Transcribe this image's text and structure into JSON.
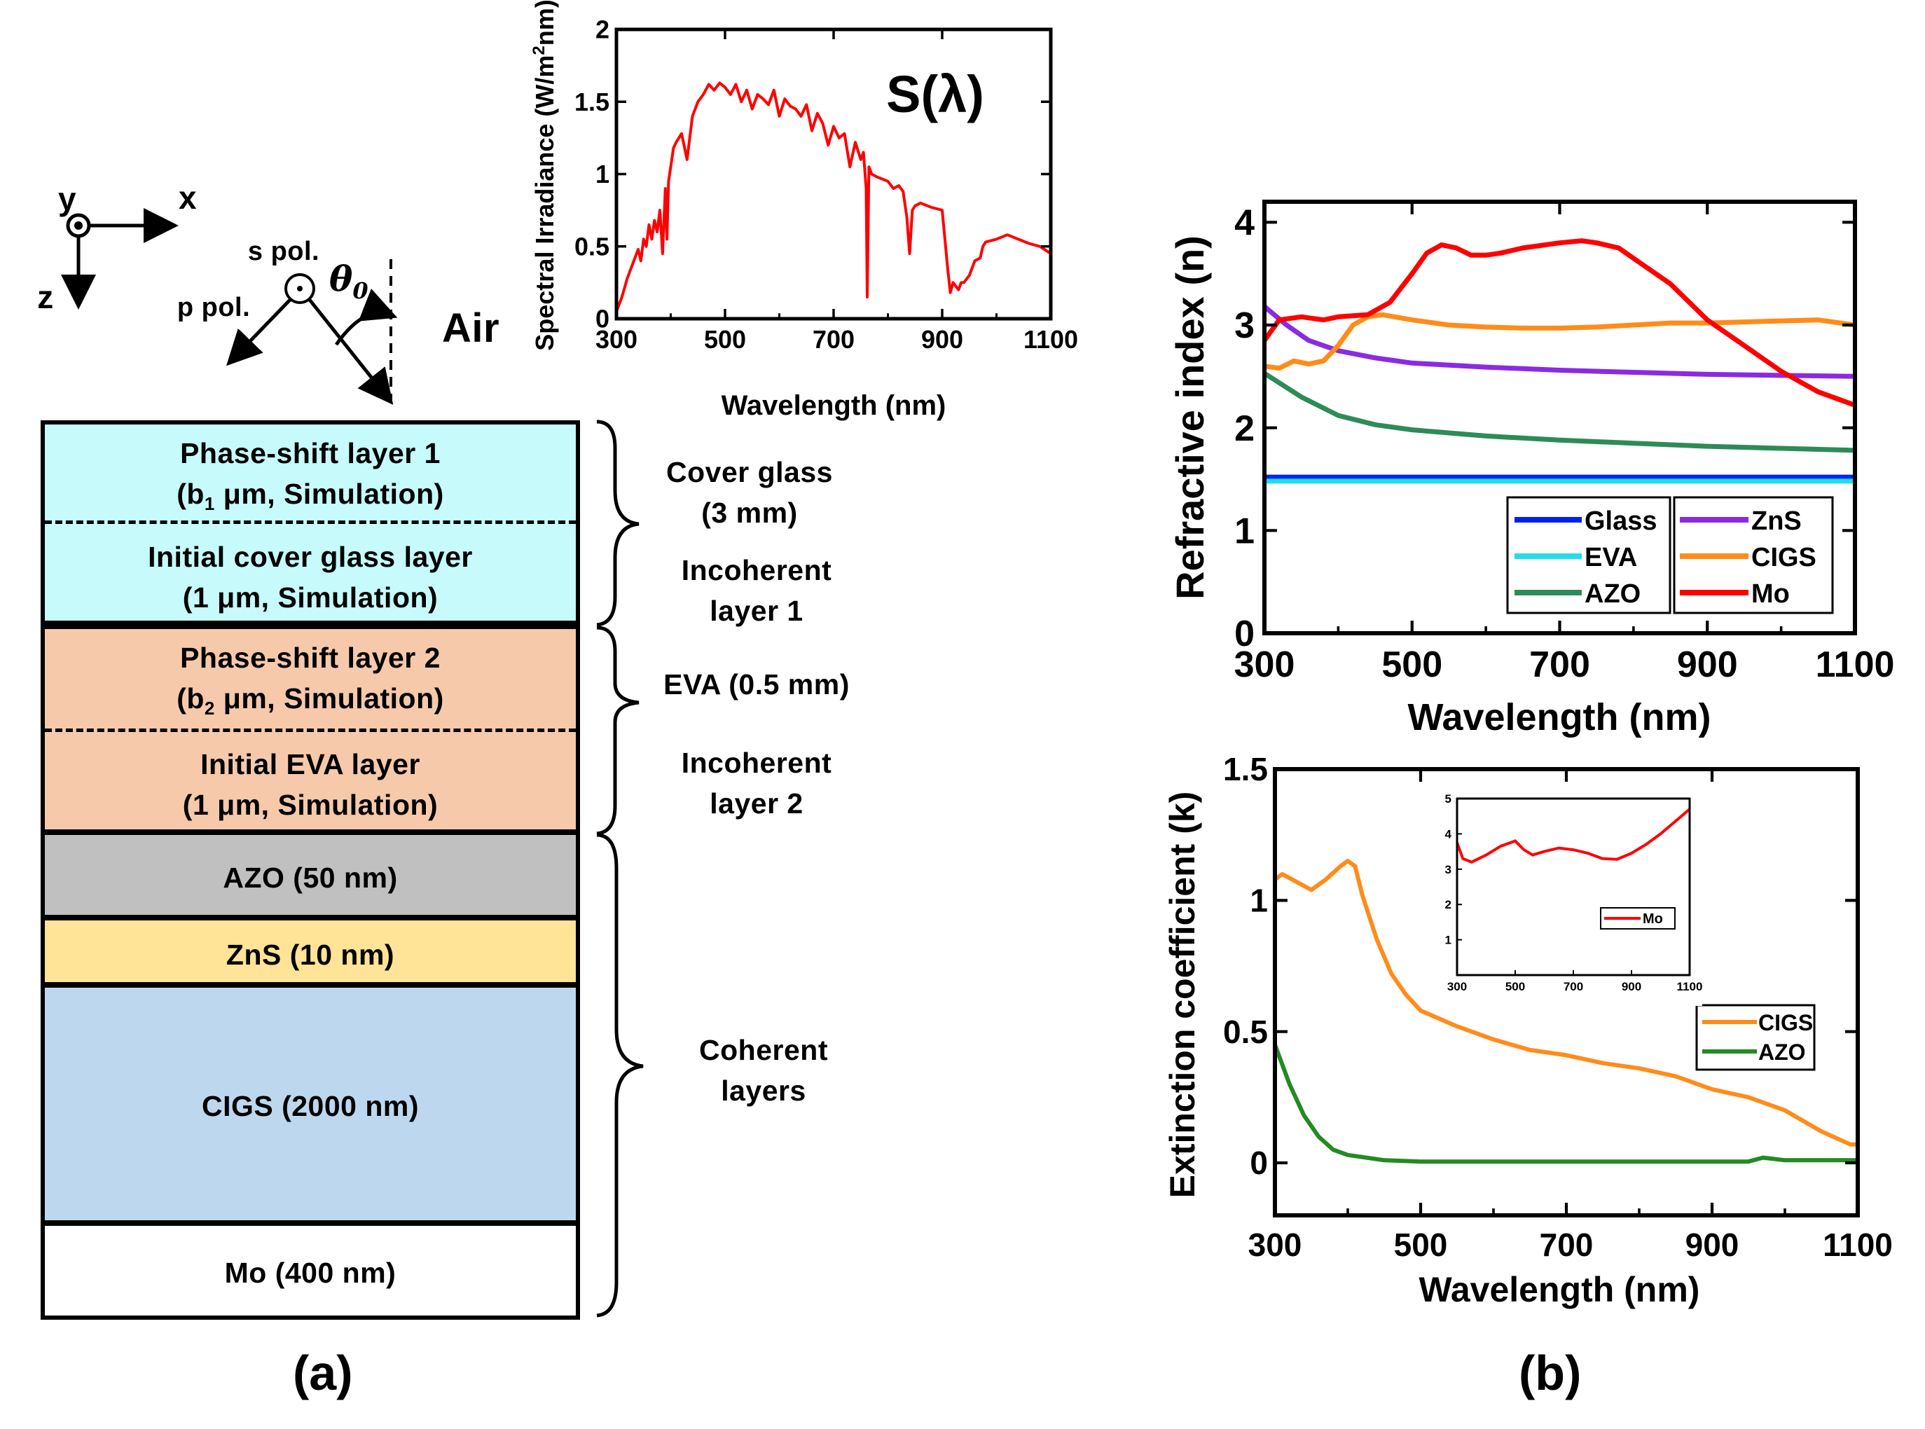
{
  "panel_a": {
    "label": "(a)",
    "axes": {
      "y": "y",
      "x": "x",
      "z": "z"
    },
    "polarization": {
      "s": "s pol.",
      "p": "p pol.",
      "angle": "θ",
      "angle_sub": "0"
    },
    "medium": "Air",
    "layers": [
      {
        "id": "ps1",
        "line1": "Phase-shift layer 1",
        "line2_pre": "(b",
        "line2_sub": "1",
        "line2_post": " μm, Simulation)",
        "color": "#C6FAFB"
      },
      {
        "id": "icg",
        "line1": "Initial cover glass layer",
        "line2": "(1 μm, Simulation)",
        "color": "#C6FAFB"
      },
      {
        "id": "ps2",
        "line1": "Phase-shift layer 2",
        "line2_pre": "(b",
        "line2_sub": "2",
        "line2_post": " μm, Simulation)",
        "color": "#F5C9AA"
      },
      {
        "id": "iev",
        "line1": "Initial EVA layer",
        "line2": "(1 μm, Simulation)",
        "color": "#F5C9AA"
      },
      {
        "id": "azo",
        "text": "AZO (50 nm)",
        "color": "#C0C0C0"
      },
      {
        "id": "zns",
        "text": "ZnS (10 nm)",
        "color": "#FFE396"
      },
      {
        "id": "cigs",
        "text": "CIGS (2000 nm)",
        "color": "#BDD7EE"
      },
      {
        "id": "mo",
        "text": "Mo (400 nm)",
        "color": "#FFFFFF"
      }
    ],
    "brace_labels": {
      "cover_glass": [
        "Cover glass",
        "(3 mm)"
      ],
      "incoherent1": [
        "Incoherent",
        "layer 1"
      ],
      "eva": "EVA (0.5 mm)",
      "incoherent2": [
        "Incoherent",
        "layer 2"
      ],
      "coherent": [
        "Coherent",
        "layers"
      ]
    }
  },
  "panel_b": {
    "label": "(b)"
  },
  "chart_data": [
    {
      "type": "line",
      "id": "spectrum",
      "annotation": "S(λ)",
      "xlabel": "Wavelength (nm)",
      "ylabel": "Spectral Irradiance (W/m²nm)",
      "ylabel_pre": "Spectral Irradiance (W/m",
      "ylabel_sup": "2",
      "ylabel_post": "nm)",
      "xlim": [
        300,
        1100
      ],
      "ylim": [
        0,
        2
      ],
      "xticks": [
        "300",
        "500",
        "700",
        "900",
        "1100"
      ],
      "yticks": [
        "0",
        "0.5",
        "1",
        "1.5",
        "2"
      ],
      "series": [
        {
          "name": "S(λ)",
          "color": "#FF0000",
          "x": [
            300,
            310,
            320,
            330,
            340,
            345,
            350,
            355,
            360,
            365,
            370,
            375,
            380,
            385,
            390,
            393,
            396,
            400,
            405,
            410,
            420,
            430,
            440,
            450,
            460,
            470,
            480,
            490,
            500,
            510,
            520,
            530,
            540,
            550,
            560,
            570,
            580,
            590,
            600,
            610,
            620,
            630,
            640,
            650,
            660,
            670,
            680,
            690,
            700,
            710,
            720,
            730,
            740,
            750,
            755,
            760,
            762,
            765,
            770,
            780,
            800,
            810,
            820,
            828,
            835,
            840,
            845,
            850,
            860,
            880,
            900,
            910,
            915,
            920,
            930,
            935,
            940,
            950,
            960,
            970,
            975,
            980,
            1000,
            1020,
            1040,
            1060,
            1080,
            1100
          ],
          "y": [
            0.05,
            0.15,
            0.28,
            0.38,
            0.48,
            0.4,
            0.55,
            0.5,
            0.65,
            0.55,
            0.68,
            0.6,
            0.75,
            0.45,
            0.9,
            0.55,
            0.95,
            1.05,
            1.18,
            1.22,
            1.28,
            1.1,
            1.4,
            1.5,
            1.55,
            1.62,
            1.58,
            1.63,
            1.6,
            1.55,
            1.62,
            1.5,
            1.58,
            1.45,
            1.55,
            1.52,
            1.48,
            1.58,
            1.4,
            1.52,
            1.47,
            1.45,
            1.4,
            1.48,
            1.3,
            1.42,
            1.35,
            1.2,
            1.33,
            1.25,
            1.28,
            1.05,
            1.22,
            1.1,
            1.15,
            0.9,
            0.15,
            1.05,
            1.0,
            0.98,
            0.95,
            0.9,
            0.92,
            0.88,
            0.7,
            0.45,
            0.75,
            0.78,
            0.8,
            0.77,
            0.75,
            0.35,
            0.18,
            0.25,
            0.2,
            0.25,
            0.25,
            0.3,
            0.4,
            0.42,
            0.5,
            0.53,
            0.55,
            0.58,
            0.55,
            0.52,
            0.5,
            0.45
          ]
        }
      ]
    },
    {
      "type": "line",
      "id": "refractive",
      "xlabel": "Wavelength (nm)",
      "ylabel": "Refractive index (n)",
      "xlim": [
        300,
        1100
      ],
      "ylim": [
        0,
        4.2
      ],
      "xticks": [
        "300",
        "500",
        "700",
        "900",
        "1100"
      ],
      "yticks": [
        "0",
        "1",
        "2",
        "3",
        "4"
      ],
      "series": [
        {
          "name": "Glass",
          "color": "#0022EE",
          "x": [
            300,
            1100
          ],
          "y": [
            1.52,
            1.52
          ]
        },
        {
          "name": "EVA",
          "color": "#22DDEE",
          "x": [
            300,
            1100
          ],
          "y": [
            1.48,
            1.48
          ]
        },
        {
          "name": "AZO",
          "color": "#2E8B57",
          "x": [
            300,
            350,
            400,
            450,
            500,
            600,
            700,
            800,
            900,
            1000,
            1100
          ],
          "y": [
            2.53,
            2.3,
            2.12,
            2.03,
            1.98,
            1.92,
            1.88,
            1.85,
            1.82,
            1.8,
            1.78
          ]
        },
        {
          "name": "ZnS",
          "color": "#8A2BE2",
          "x": [
            300,
            330,
            360,
            400,
            450,
            500,
            600,
            700,
            800,
            900,
            1000,
            1100
          ],
          "y": [
            3.18,
            3.0,
            2.85,
            2.75,
            2.68,
            2.63,
            2.59,
            2.56,
            2.54,
            2.52,
            2.51,
            2.5
          ]
        },
        {
          "name": "CIGS",
          "color": "#FF8C1A",
          "x": [
            300,
            320,
            340,
            360,
            380,
            400,
            420,
            440,
            460,
            500,
            550,
            600,
            650,
            700,
            750,
            800,
            850,
            900,
            950,
            1000,
            1050,
            1100
          ],
          "y": [
            2.6,
            2.58,
            2.65,
            2.62,
            2.65,
            2.8,
            3.0,
            3.08,
            3.1,
            3.05,
            3.0,
            2.98,
            2.97,
            2.97,
            2.98,
            3.0,
            3.02,
            3.02,
            3.03,
            3.04,
            3.05,
            3.0
          ]
        },
        {
          "name": "Mo",
          "color": "#FF0000",
          "x": [
            300,
            320,
            350,
            380,
            400,
            440,
            470,
            500,
            520,
            540,
            560,
            580,
            600,
            620,
            650,
            700,
            730,
            750,
            780,
            800,
            850,
            900,
            950,
            1000,
            1050,
            1100
          ],
          "y": [
            2.85,
            3.05,
            3.08,
            3.05,
            3.08,
            3.1,
            3.22,
            3.5,
            3.7,
            3.78,
            3.75,
            3.68,
            3.68,
            3.7,
            3.75,
            3.8,
            3.82,
            3.8,
            3.75,
            3.65,
            3.4,
            3.05,
            2.8,
            2.55,
            2.35,
            2.22
          ]
        }
      ]
    },
    {
      "type": "line",
      "id": "extinction",
      "xlabel": "Wavelength (nm)",
      "ylabel": "Extinction coefficient (k)",
      "xlim": [
        300,
        1100
      ],
      "ylim": [
        -0.2,
        1.5
      ],
      "xticks": [
        "300",
        "500",
        "700",
        "900",
        "1100"
      ],
      "yticks": [
        "0",
        "0.5",
        "1",
        "1.5"
      ],
      "series": [
        {
          "name": "CIGS",
          "color": "#FF8C1A",
          "x": [
            300,
            310,
            330,
            350,
            370,
            390,
            400,
            410,
            420,
            440,
            460,
            480,
            500,
            550,
            600,
            650,
            700,
            750,
            800,
            850,
            900,
            950,
            1000,
            1050,
            1090,
            1100
          ],
          "y": [
            1.08,
            1.1,
            1.07,
            1.04,
            1.08,
            1.13,
            1.15,
            1.13,
            1.02,
            0.85,
            0.72,
            0.64,
            0.58,
            0.52,
            0.47,
            0.43,
            0.41,
            0.38,
            0.36,
            0.33,
            0.28,
            0.25,
            0.2,
            0.12,
            0.07,
            0.07
          ]
        },
        {
          "name": "AZO",
          "color": "#228B22",
          "x": [
            300,
            320,
            340,
            360,
            380,
            400,
            450,
            500,
            600,
            700,
            800,
            900,
            950,
            970,
            1000,
            1100
          ],
          "y": [
            0.45,
            0.3,
            0.18,
            0.1,
            0.05,
            0.03,
            0.01,
            0.005,
            0.005,
            0.005,
            0.005,
            0.005,
            0.005,
            0.02,
            0.01,
            0.01
          ]
        }
      ],
      "inset": {
        "xticks": [
          "300",
          "500",
          "700",
          "900",
          "1100"
        ],
        "yticks": [
          "1",
          "2",
          "3",
          "4",
          "5"
        ],
        "xlim": [
          300,
          1100
        ],
        "ylim": [
          0,
          5
        ],
        "series": [
          {
            "name": "Mo",
            "color": "#FF0000",
            "x": [
              300,
              320,
              350,
              400,
              450,
              500,
              530,
              560,
              600,
              650,
              700,
              750,
              800,
              850,
              900,
              950,
              1000,
              1050,
              1100
            ],
            "y": [
              3.75,
              3.3,
              3.2,
              3.4,
              3.65,
              3.8,
              3.55,
              3.4,
              3.5,
              3.6,
              3.55,
              3.45,
              3.3,
              3.28,
              3.45,
              3.7,
              4.0,
              4.35,
              4.7
            ]
          }
        ]
      }
    }
  ]
}
